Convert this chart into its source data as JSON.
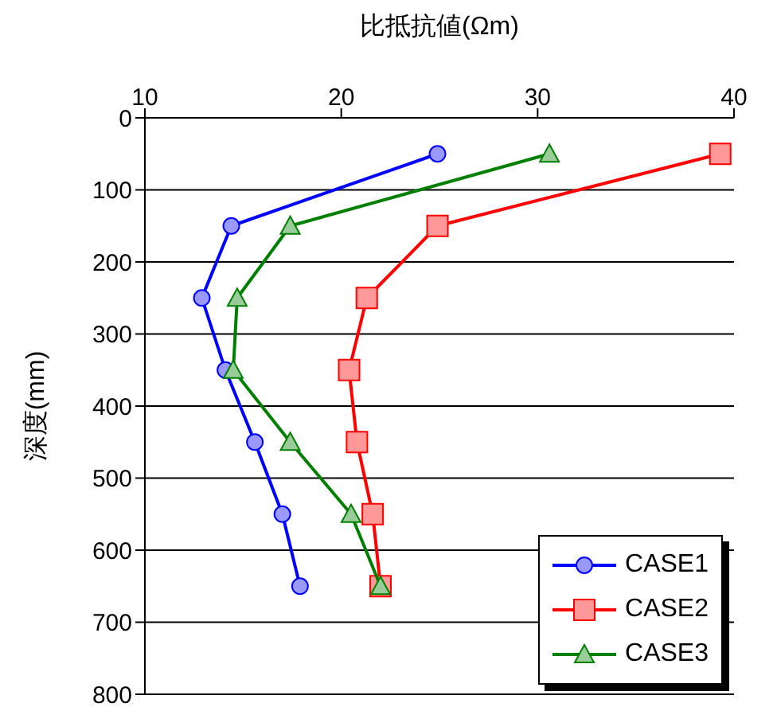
{
  "chart_data": {
    "type": "line",
    "xlabel": "比抵抗値(Ωm)",
    "ylabel": "深度(mm)",
    "xlim": [
      10,
      40
    ],
    "xticks": [
      10,
      20,
      30,
      40
    ],
    "ylim": [
      800,
      0
    ],
    "yticks": [
      0,
      100,
      200,
      300,
      400,
      500,
      600,
      700,
      800
    ],
    "grid": "y",
    "legend": "bottom right",
    "series": [
      {
        "name": "CASE1",
        "color": "#0000ff",
        "marker": "circle",
        "x": [
          24.9,
          14.4,
          12.9,
          14.1,
          15.6,
          17.0,
          17.9
        ],
        "values": [
          50,
          150,
          250,
          350,
          450,
          550,
          650
        ]
      },
      {
        "name": "CASE2",
        "color": "#ff0000",
        "marker": "square",
        "x": [
          39.3,
          24.9,
          21.3,
          20.4,
          20.8,
          21.6,
          22.0
        ],
        "values": [
          50,
          150,
          250,
          350,
          450,
          550,
          650
        ]
      },
      {
        "name": "CASE3",
        "color": "#008000",
        "marker": "triangle",
        "x": [
          30.6,
          17.4,
          14.7,
          14.5,
          17.4,
          20.5,
          22.0
        ],
        "values": [
          50,
          150,
          250,
          350,
          450,
          550,
          650
        ]
      }
    ]
  }
}
